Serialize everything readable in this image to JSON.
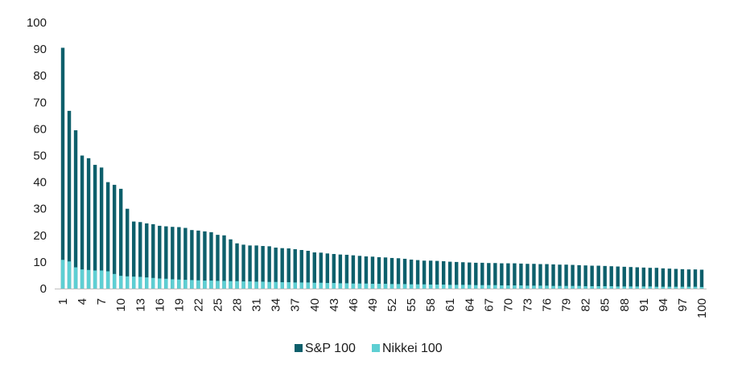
{
  "chart_data": {
    "type": "bar",
    "title": "",
    "xlabel": "",
    "ylabel": "",
    "ylim": [
      0,
      100
    ],
    "yticks": [
      0,
      10,
      20,
      30,
      40,
      50,
      60,
      70,
      80,
      90,
      100
    ],
    "xtick_labels": [
      "1",
      "4",
      "7",
      "10",
      "13",
      "16",
      "19",
      "22",
      "25",
      "28",
      "31",
      "34",
      "37",
      "40",
      "43",
      "46",
      "49",
      "52",
      "55",
      "58",
      "61",
      "64",
      "67",
      "70",
      "73",
      "76",
      "79",
      "82",
      "85",
      "88",
      "91",
      "94",
      "97",
      "100"
    ],
    "categories": [
      1,
      2,
      3,
      4,
      5,
      6,
      7,
      8,
      9,
      10,
      11,
      12,
      13,
      14,
      15,
      16,
      17,
      18,
      19,
      20,
      21,
      22,
      23,
      24,
      25,
      26,
      27,
      28,
      29,
      30,
      31,
      32,
      33,
      34,
      35,
      36,
      37,
      38,
      39,
      40,
      41,
      42,
      43,
      44,
      45,
      46,
      47,
      48,
      49,
      50,
      51,
      52,
      53,
      54,
      55,
      56,
      57,
      58,
      59,
      60,
      61,
      62,
      63,
      64,
      65,
      66,
      67,
      68,
      69,
      70,
      71,
      72,
      73,
      74,
      75,
      76,
      77,
      78,
      79,
      80,
      81,
      82,
      83,
      84,
      85,
      86,
      87,
      88,
      89,
      90,
      91,
      92,
      93,
      94,
      95,
      96,
      97,
      98,
      99,
      100
    ],
    "grid": false,
    "legend_position": "bottom-center",
    "overlap": true,
    "series": [
      {
        "name": "S&P 100",
        "color": "#0d5f6b",
        "values": [
          90.5,
          66.8,
          59.5,
          50,
          49,
          46.5,
          45.5,
          40,
          39,
          37.5,
          30,
          25.2,
          25,
          24.5,
          24.2,
          23.6,
          23.4,
          23.2,
          23.1,
          22.8,
          22,
          21.8,
          21.5,
          21.2,
          20.2,
          20,
          18.5,
          17,
          16.5,
          16.2,
          16.2,
          16,
          15.9,
          15.4,
          15.2,
          15.1,
          14.8,
          14.5,
          14.2,
          13.6,
          13.5,
          13.2,
          13,
          12.8,
          12.7,
          12.5,
          12.3,
          12.1,
          12,
          11.8,
          11.7,
          11.5,
          11.4,
          11.2,
          10.9,
          10.7,
          10.5,
          10.5,
          10.4,
          10.3,
          10.1,
          10,
          9.9,
          9.8,
          9.7,
          9.7,
          9.6,
          9.6,
          9.5,
          9.5,
          9.5,
          9.4,
          9.3,
          9.3,
          9.2,
          9.2,
          9.1,
          9.0,
          9.0,
          8.9,
          8.8,
          8.7,
          8.6,
          8.6,
          8.5,
          8.4,
          8.3,
          8.2,
          8.1,
          8.0,
          7.9,
          7.8,
          7.8,
          7.6,
          7.5,
          7.4,
          7.3,
          7.2,
          7.2,
          7.1
        ]
      },
      {
        "name": "Nikkei 100",
        "color": "#5ecfd3",
        "values": [
          10.8,
          10.2,
          8,
          7.2,
          7,
          6.8,
          6.8,
          6.5,
          5.5,
          4.8,
          4.6,
          4.5,
          4.4,
          4.2,
          4.0,
          3.8,
          3.7,
          3.5,
          3.4,
          3.3,
          3.2,
          3.1,
          3.0,
          3.0,
          2.9,
          2.9,
          2.8,
          2.8,
          2.7,
          2.7,
          2.6,
          2.6,
          2.5,
          2.5,
          2.4,
          2.4,
          2.3,
          2.3,
          2.3,
          2.2,
          2.2,
          2.1,
          2.1,
          2.0,
          2.0,
          1.9,
          1.9,
          1.9,
          1.8,
          1.8,
          1.8,
          1.7,
          1.7,
          1.7,
          1.6,
          1.6,
          1.6,
          1.5,
          1.5,
          1.5,
          1.4,
          1.4,
          1.4,
          1.4,
          1.3,
          1.3,
          1.3,
          1.3,
          1.2,
          1.2,
          1.2,
          1.2,
          1.1,
          1.1,
          1.1,
          1.1,
          1.0,
          1.0,
          1.0,
          1.0,
          1.0,
          0.9,
          0.9,
          0.9,
          0.9,
          0.9,
          0.8,
          0.8,
          0.8,
          0.8,
          0.8,
          0.8,
          0.7,
          0.7,
          0.7,
          0.7,
          0.7,
          0.7,
          0.7,
          0.6
        ]
      }
    ]
  }
}
